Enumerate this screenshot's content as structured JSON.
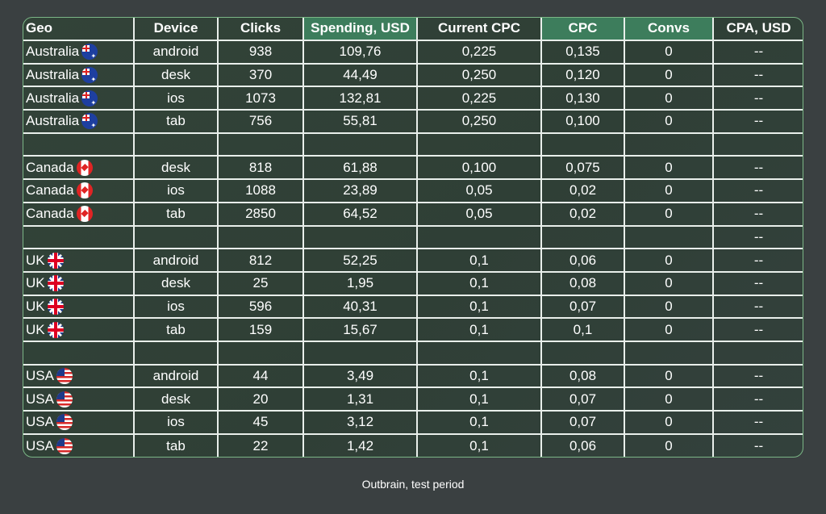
{
  "colors": {
    "background": "#3a4041",
    "header_highlight": "#3d7d5c",
    "border": "#7bb686"
  },
  "table": {
    "headers": [
      {
        "label": "Geo",
        "highlight": false
      },
      {
        "label": "Device",
        "highlight": false
      },
      {
        "label": "Clicks",
        "highlight": false
      },
      {
        "label": "Spending, USD",
        "highlight": true
      },
      {
        "label": "Current CPC",
        "highlight": false
      },
      {
        "label": "CPC",
        "highlight": true
      },
      {
        "label": "Convs",
        "highlight": true
      },
      {
        "label": "CPA, USD",
        "highlight": false
      }
    ],
    "rows": [
      {
        "geo": "Australia",
        "flag": "au-flag-icon",
        "device": "android",
        "clicks": "938",
        "spending": "109,76",
        "current_cpc": "0,225",
        "cpc": "0,135",
        "convs": "0",
        "cpa": "--"
      },
      {
        "geo": "Australia",
        "flag": "au-flag-icon",
        "device": "desk",
        "clicks": "370",
        "spending": "44,49",
        "current_cpc": "0,250",
        "cpc": "0,120",
        "convs": "0",
        "cpa": "--"
      },
      {
        "geo": "Australia",
        "flag": "au-flag-icon",
        "device": "ios",
        "clicks": "1073",
        "spending": "132,81",
        "current_cpc": "0,225",
        "cpc": "0,130",
        "convs": "0",
        "cpa": "--"
      },
      {
        "geo": "Australia",
        "flag": "au-flag-icon",
        "device": "tab",
        "clicks": "756",
        "spending": "55,81",
        "current_cpc": "0,250",
        "cpc": "0,100",
        "convs": "0",
        "cpa": "--"
      },
      {
        "geo": "",
        "flag": "",
        "device": "",
        "clicks": "",
        "spending": "",
        "current_cpc": "",
        "cpc": "",
        "convs": "",
        "cpa": ""
      },
      {
        "geo": "Canada",
        "flag": "ca-flag-icon",
        "device": "desk",
        "clicks": "818",
        "spending": "61,88",
        "current_cpc": "0,100",
        "cpc": "0,075",
        "convs": "0",
        "cpa": "--"
      },
      {
        "geo": "Canada",
        "flag": "ca-flag-icon",
        "device": "ios",
        "clicks": "1088",
        "spending": "23,89",
        "current_cpc": "0,05",
        "cpc": "0,02",
        "convs": "0",
        "cpa": "--"
      },
      {
        "geo": "Canada",
        "flag": "ca-flag-icon",
        "device": "tab",
        "clicks": "2850",
        "spending": "64,52",
        "current_cpc": "0,05",
        "cpc": "0,02",
        "convs": "0",
        "cpa": "--"
      },
      {
        "geo": "",
        "flag": "",
        "device": "",
        "clicks": "",
        "spending": "",
        "current_cpc": "",
        "cpc": "",
        "convs": "",
        "cpa": "--"
      },
      {
        "geo": "UK",
        "flag": "uk-flag-icon",
        "device": "android",
        "clicks": "812",
        "spending": "52,25",
        "current_cpc": "0,1",
        "cpc": "0,06",
        "convs": "0",
        "cpa": "--"
      },
      {
        "geo": "UK",
        "flag": "uk-flag-icon",
        "device": "desk",
        "clicks": "25",
        "spending": "1,95",
        "current_cpc": "0,1",
        "cpc": "0,08",
        "convs": "0",
        "cpa": "--"
      },
      {
        "geo": "UK",
        "flag": "uk-flag-icon",
        "device": "ios",
        "clicks": "596",
        "spending": "40,31",
        "current_cpc": "0,1",
        "cpc": "0,07",
        "convs": "0",
        "cpa": "--"
      },
      {
        "geo": "UK",
        "flag": "uk-flag-icon",
        "device": "tab",
        "clicks": "159",
        "spending": "15,67",
        "current_cpc": "0,1",
        "cpc": "0,1",
        "convs": "0",
        "cpa": "--"
      },
      {
        "geo": "",
        "flag": "",
        "device": "",
        "clicks": "",
        "spending": "",
        "current_cpc": "",
        "cpc": "",
        "convs": "",
        "cpa": ""
      },
      {
        "geo": "USA",
        "flag": "us-flag-icon",
        "device": "android",
        "clicks": "44",
        "spending": "3,49",
        "current_cpc": "0,1",
        "cpc": "0,08",
        "convs": "0",
        "cpa": "--"
      },
      {
        "geo": "USA",
        "flag": "us-flag-icon",
        "device": "desk",
        "clicks": "20",
        "spending": "1,31",
        "current_cpc": "0,1",
        "cpc": "0,07",
        "convs": "0",
        "cpa": "--"
      },
      {
        "geo": "USA",
        "flag": "us-flag-icon",
        "device": "ios",
        "clicks": "45",
        "spending": "3,12",
        "current_cpc": "0,1",
        "cpc": "0,07",
        "convs": "0",
        "cpa": "--"
      },
      {
        "geo": "USA",
        "flag": "us-flag-icon",
        "device": "tab",
        "clicks": "22",
        "spending": "1,42",
        "current_cpc": "0,1",
        "cpc": "0,06",
        "convs": "0",
        "cpa": "--"
      }
    ]
  },
  "caption": "Outbrain, test period"
}
